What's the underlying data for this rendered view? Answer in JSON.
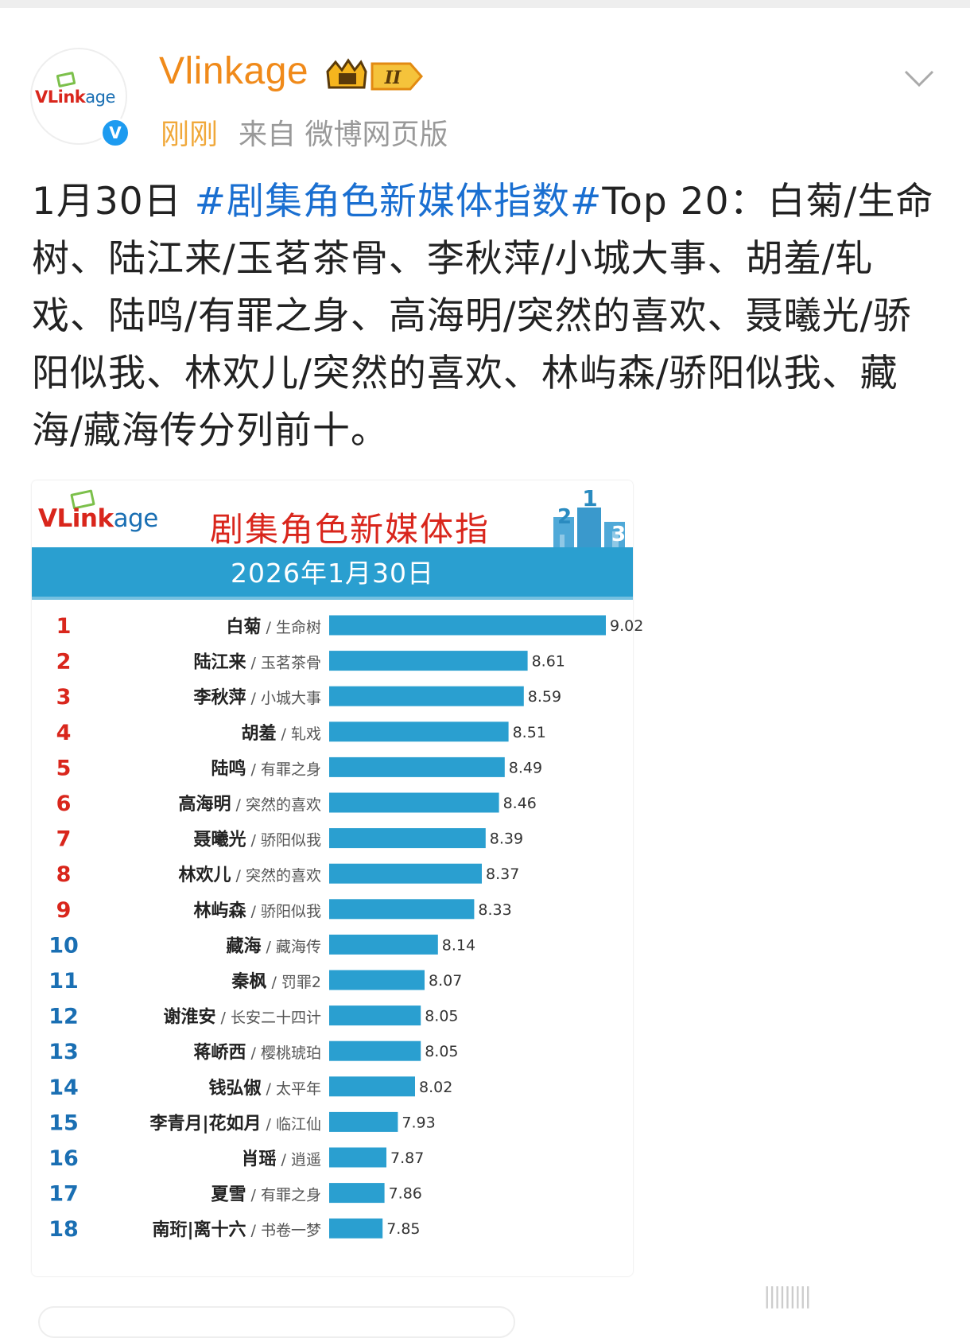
{
  "post": {
    "author": "Vlinkage",
    "avatar_logo": {
      "v": "VLink",
      "age": "age"
    },
    "verified_glyph": "V",
    "level_badge": "II",
    "time": "刚刚",
    "source": "来自 微博网页版",
    "text_prefix": "1月30日 ",
    "hashtag": "#剧集角色新媒体指数#",
    "text_body": "Top 20：白菊/生命树、陆江来/玉茗茶骨、李秋萍/小城大事、胡羞/轧戏、陆鸣/有罪之身、高海明/突然的喜欢、聂曦光/骄阳似我、林欢儿/突然的喜欢、林屿森/骄阳似我、藏海/藏海传分列前十。"
  },
  "card": {
    "logo": {
      "v": "VLink",
      "age": "age"
    },
    "title": "剧集角色新媒体指",
    "date": "2026年1月30日",
    "podium": [
      "2",
      "1",
      "3"
    ]
  },
  "colors": {
    "bar": "#2a9fd0",
    "rank": "#d9261c",
    "rank_after_9": "#1a6fb3"
  },
  "chart_data": {
    "type": "bar",
    "orientation": "horizontal",
    "title": "剧集角色新媒体指",
    "subtitle": "2026年1月30日",
    "rows": [
      {
        "rank": "1",
        "name": "白菊",
        "show": "生命树",
        "value": 9.02
      },
      {
        "rank": "2",
        "name": "陆江来",
        "show": "玉茗茶骨",
        "value": 8.61
      },
      {
        "rank": "3",
        "name": "李秋萍",
        "show": "小城大事",
        "value": 8.59
      },
      {
        "rank": "4",
        "name": "胡羞",
        "show": "轧戏",
        "value": 8.51
      },
      {
        "rank": "5",
        "name": "陆鸣",
        "show": "有罪之身",
        "value": 8.49
      },
      {
        "rank": "6",
        "name": "高海明",
        "show": "突然的喜欢",
        "value": 8.46
      },
      {
        "rank": "7",
        "name": "聂曦光",
        "show": "骄阳似我",
        "value": 8.39
      },
      {
        "rank": "8",
        "name": "林欢儿",
        "show": "突然的喜欢",
        "value": 8.37
      },
      {
        "rank": "9",
        "name": "林屿森",
        "show": "骄阳似我",
        "value": 8.33
      },
      {
        "rank": "10",
        "name": "藏海",
        "show": "藏海传",
        "value": 8.14
      },
      {
        "rank": "11",
        "name": "秦枫",
        "show": "罚罪2",
        "value": 8.07
      },
      {
        "rank": "12",
        "name": "谢淮安",
        "show": "长安二十四计",
        "value": 8.05
      },
      {
        "rank": "13",
        "name": "蒋峤西",
        "show": "樱桃琥珀",
        "value": 8.05
      },
      {
        "rank": "14",
        "name": "钱弘俶",
        "show": "太平年",
        "value": 8.02
      },
      {
        "rank": "15",
        "name": "李青月|花如月",
        "show": "临江仙",
        "value": 7.93
      },
      {
        "rank": "16",
        "name": "肖瑶",
        "show": "逍遥",
        "value": 7.87
      },
      {
        "rank": "17",
        "name": "夏雪",
        "show": "有罪之身",
        "value": 7.86
      },
      {
        "rank": "18",
        "name": "南珩|离十六",
        "show": "书卷一梦",
        "value": 7.85
      }
    ],
    "xlim": [
      7.57,
      9.22
    ],
    "grid": false,
    "legend": "none"
  },
  "watermark": "|||||||||"
}
